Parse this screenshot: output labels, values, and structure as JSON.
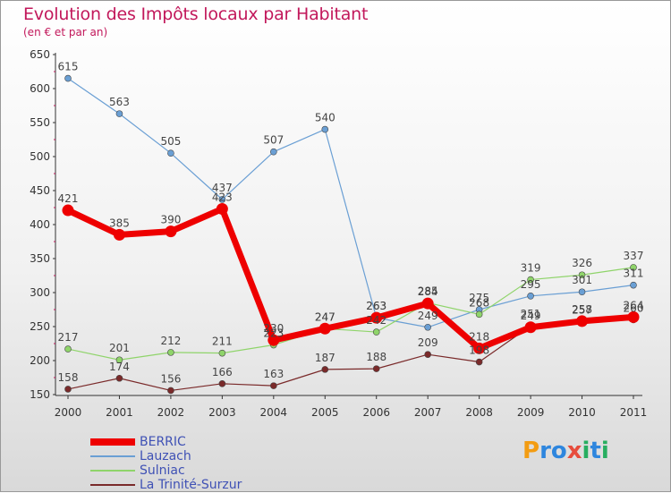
{
  "header": {
    "title": "Evolution des Impôts locaux par Habitant",
    "subtitle": "(en € et par an)"
  },
  "logo": {
    "letters": [
      "P",
      "r",
      "o",
      "x",
      "i",
      "t",
      "i"
    ],
    "colors": [
      "#f39c12",
      "#2e86de",
      "#2e86de",
      "#e74c3c",
      "#27ae60",
      "#2e86de",
      "#27ae60"
    ]
  },
  "chart_data": {
    "type": "line",
    "title": "Evolution des Impôts locaux par Habitant",
    "subtitle": "(en € et par an)",
    "xlabel": "",
    "ylabel": "",
    "x": [
      "2000",
      "2001",
      "2002",
      "2003",
      "2004",
      "2005",
      "2006",
      "2007",
      "2008",
      "2009",
      "2010",
      "2011"
    ],
    "ylim": [
      150,
      650
    ],
    "yticks": [
      150,
      200,
      250,
      300,
      350,
      400,
      450,
      500,
      550,
      600,
      650
    ],
    "grid": false,
    "legend_position": "bottom-left",
    "series": [
      {
        "name": "BERRIC",
        "color": "#ee0000",
        "bold": true,
        "values": [
          421,
          385,
          390,
          423,
          230,
          247,
          263,
          284,
          218,
          249,
          258,
          264
        ],
        "labels": [
          "421",
          "385",
          "390",
          "423",
          "230",
          "247",
          "263",
          "284",
          "218",
          "249",
          "258",
          "264"
        ]
      },
      {
        "name": "Lauzach",
        "color": "#6a9fd4",
        "bold": false,
        "values": [
          615,
          563,
          505,
          437,
          507,
          540,
          263,
          249,
          275,
          295,
          301,
          311
        ],
        "labels": [
          "615",
          "563",
          "505",
          "437",
          "507",
          "540",
          "263",
          "249",
          "275",
          "295",
          "301",
          "311"
        ]
      },
      {
        "name": "Sulniac",
        "color": "#8fd46a",
        "bold": false,
        "values": [
          217,
          201,
          212,
          211,
          223,
          247,
          242,
          285,
          268,
          319,
          326,
          337
        ],
        "labels": [
          "217",
          "201",
          "212",
          "211",
          "223",
          "247",
          "242",
          "285",
          "268",
          "319",
          "326",
          "337"
        ]
      },
      {
        "name": "La Trinité-Surzur",
        "color": "#7a2a2a",
        "bold": false,
        "values": [
          158,
          174,
          156,
          166,
          163,
          187,
          188,
          209,
          198,
          251,
          257,
          260
        ],
        "labels": [
          "158",
          "174",
          "156",
          "166",
          "163",
          "187",
          "188",
          "209",
          "198",
          "251",
          "257",
          "260"
        ]
      }
    ]
  }
}
